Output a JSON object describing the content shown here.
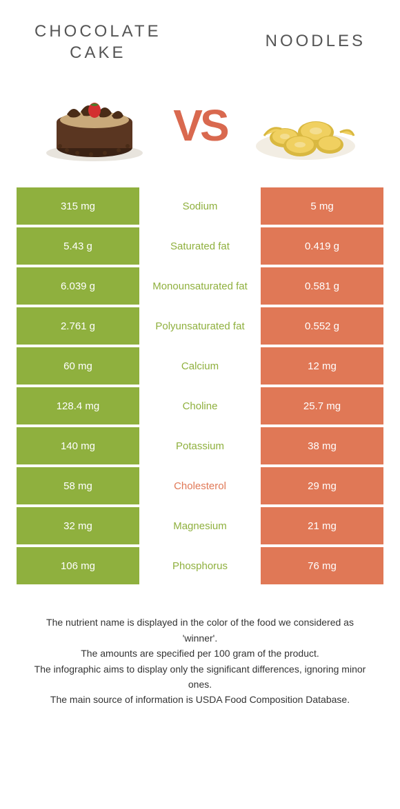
{
  "food_left": {
    "title": "CHOCOLATE\nCAKE"
  },
  "food_right": {
    "title": "NOODLES"
  },
  "vs": "VS",
  "colors": {
    "left_cell": "#8fb03e",
    "right_cell": "#e07856",
    "left_text": "#8fb03e",
    "right_text": "#e07856"
  },
  "rows": [
    {
      "left": "315 mg",
      "label": "Sodium",
      "right": "5 mg",
      "winner": "left"
    },
    {
      "left": "5.43 g",
      "label": "Saturated fat",
      "right": "0.419 g",
      "winner": "left"
    },
    {
      "left": "6.039 g",
      "label": "Monounsaturated fat",
      "right": "0.581 g",
      "winner": "left"
    },
    {
      "left": "2.761 g",
      "label": "Polyunsaturated fat",
      "right": "0.552 g",
      "winner": "left"
    },
    {
      "left": "60 mg",
      "label": "Calcium",
      "right": "12 mg",
      "winner": "left"
    },
    {
      "left": "128.4 mg",
      "label": "Choline",
      "right": "25.7 mg",
      "winner": "left"
    },
    {
      "left": "140 mg",
      "label": "Potassium",
      "right": "38 mg",
      "winner": "left"
    },
    {
      "left": "58 mg",
      "label": "Cholesterol",
      "right": "29 mg",
      "winner": "right"
    },
    {
      "left": "32 mg",
      "label": "Magnesium",
      "right": "21 mg",
      "winner": "left"
    },
    {
      "left": "106 mg",
      "label": "Phosphorus",
      "right": "76 mg",
      "winner": "left"
    }
  ],
  "footer": {
    "line1": "The nutrient name is displayed in the color of the food we considered as 'winner'.",
    "line2": "The amounts are specified per 100 gram of the product.",
    "line3": "The infographic aims to display only the significant differences, ignoring minor ones.",
    "line4": "The main source of information is USDA Food Composition Database."
  }
}
